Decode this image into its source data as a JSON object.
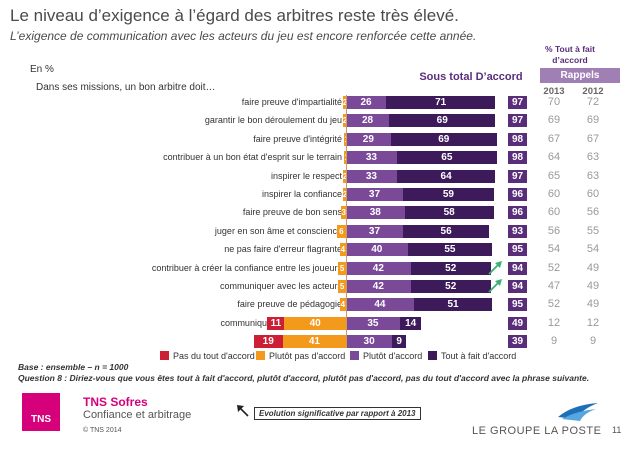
{
  "header": {
    "title": "Le niveau d’exigence à l’égard des arbitres reste très élevé.",
    "subtitle": "L’exigence de communication avec les acteurs du jeu est encore renforcée cette année."
  },
  "unit": "En %",
  "intro": "Dans ses missions, un bon arbitre doit…",
  "sous_total_label": "Sous total D’accord",
  "pct_header": "% Tout à fait d’accord",
  "rappels_label": "Rappels",
  "years": [
    "2013",
    "2012"
  ],
  "colors": {
    "pas_du_tout": "#cc1f36",
    "plutot_pas": "#f39a1d",
    "plutot": "#7a4a99",
    "tout_a_fait": "#3d1a5a",
    "total": "#5a2d7a",
    "arrow": "#3bb273"
  },
  "chart_data": {
    "type": "bar",
    "stacked": true,
    "diverging": true,
    "series": [
      {
        "name": "Pas du tout d'accord",
        "values": [
          null,
          null,
          null,
          null,
          null,
          null,
          null,
          null,
          null,
          null,
          null,
          null,
          11,
          19
        ]
      },
      {
        "name": "Plutôt pas d'accord",
        "values": [
          2,
          2,
          1,
          1,
          2,
          2,
          3,
          6,
          4,
          5,
          5,
          4,
          40,
          41
        ]
      },
      {
        "name": "Plutôt d'accord",
        "values": [
          26,
          28,
          29,
          33,
          33,
          37,
          38,
          37,
          40,
          42,
          42,
          44,
          35,
          30
        ]
      },
      {
        "name": "Tout à fait d'accord",
        "values": [
          71,
          69,
          69,
          65,
          64,
          59,
          58,
          56,
          55,
          52,
          52,
          51,
          14,
          9
        ]
      }
    ],
    "categories": [
      "faire preuve d'impartialité",
      "garantir le bon déroulement du jeu",
      "faire preuve d'intégrité",
      "contribuer à un bon état d'esprit sur le terrain",
      "inspirer le respect",
      "inspirer la confiance",
      "faire preuve de bon sens",
      "juger en son âme et conscience",
      "ne pas faire d'erreur flagrante",
      "contribuer à créer la confiance entre les joueurs",
      "communiquer avec les acteurs",
      "faire preuve de pédagogie",
      "communiquer avec les médias",
      "inspirer la crainte"
    ],
    "sous_total": [
      97,
      97,
      98,
      98,
      97,
      96,
      96,
      93,
      95,
      94,
      94,
      95,
      49,
      39
    ],
    "tout_a_fait_2013": [
      70,
      69,
      67,
      64,
      65,
      60,
      60,
      56,
      54,
      52,
      47,
      52,
      12,
      9
    ],
    "tout_a_fait_2012": [
      72,
      69,
      67,
      63,
      63,
      60,
      56,
      55,
      54,
      49,
      49,
      49,
      12,
      9
    ],
    "significant_evolution": [
      false,
      false,
      false,
      false,
      false,
      false,
      false,
      false,
      false,
      true,
      true,
      false,
      false,
      false
    ]
  },
  "legend": [
    {
      "label": "Pas du tout d'accord",
      "color": "#cc1f36"
    },
    {
      "label": "Plutôt pas d'accord",
      "color": "#f39a1d"
    },
    {
      "label": "Plutôt d'accord",
      "color": "#7a4a99"
    },
    {
      "label": "Tout à fait d'accord",
      "color": "#3d1a5a"
    }
  ],
  "footer": {
    "base": "Base : ensemble – n = 1000",
    "question": "Question 8 : Diriez-vous que vous êtes tout à fait d'accord, plutôt d'accord, plutôt pas d'accord, pas du tout d'accord avec la phrase suivante.",
    "brand": "TNS Sofres",
    "brand_sub": "Confiance et arbitrage",
    "copyright": "© TNS 2014",
    "logo_text": "TNS",
    "evolution_note": "Evolution significative par rapport à 2013",
    "partner": "LE GROUPE LA POSTE",
    "page": "11"
  }
}
